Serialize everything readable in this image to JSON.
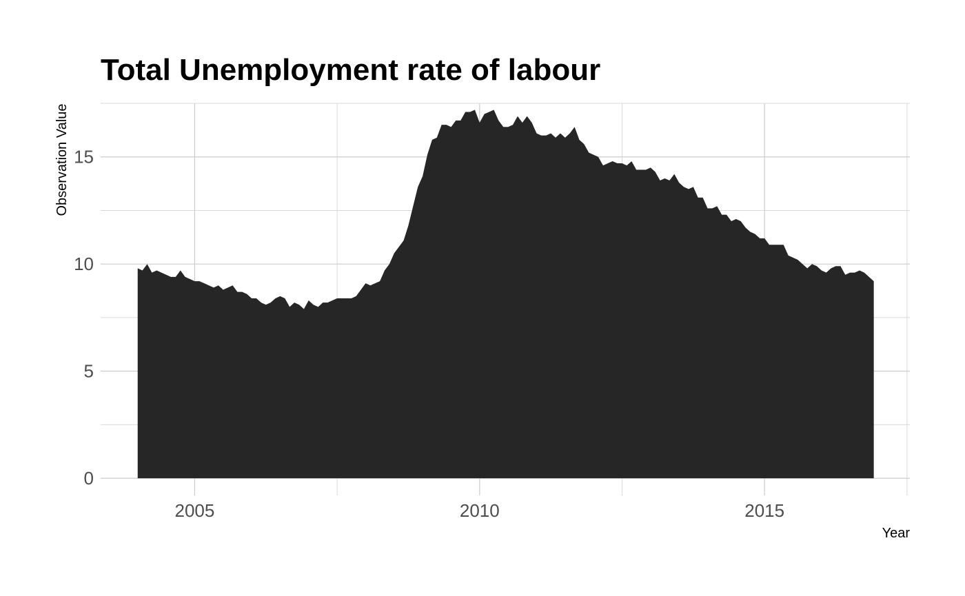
{
  "chart_data": {
    "type": "area",
    "title": "Total Unemployment rate of labour",
    "xlabel": "Year",
    "ylabel": "Observation Value",
    "xlim": [
      2003.35,
      2017.55
    ],
    "ylim": [
      -0.8,
      17.5
    ],
    "x_ticks": [
      2005,
      2010,
      2015
    ],
    "x_tick_labels": [
      "2005",
      "2010",
      "2015"
    ],
    "x_minor_ticks": [
      2007.5,
      2012.5,
      2017.5
    ],
    "y_ticks": [
      0,
      5,
      10,
      15
    ],
    "y_tick_labels": [
      "0",
      "5",
      "10",
      "15"
    ],
    "y_minor_ticks": [
      2.5,
      7.5,
      12.5,
      17.5
    ],
    "grid": true,
    "legend": "none",
    "fill_color": "#262626",
    "series": [
      {
        "x": [
          2004.0,
          2004.083,
          2004.167,
          2004.25,
          2004.333,
          2004.417,
          2004.5,
          2004.583,
          2004.667,
          2004.75,
          2004.833,
          2004.917,
          2005.0,
          2005.083,
          2005.167,
          2005.25,
          2005.333,
          2005.417,
          2005.5,
          2005.583,
          2005.667,
          2005.75,
          2005.833,
          2005.917,
          2006.0,
          2006.083,
          2006.167,
          2006.25,
          2006.333,
          2006.417,
          2006.5,
          2006.583,
          2006.667,
          2006.75,
          2006.833,
          2006.917,
          2007.0,
          2007.083,
          2007.167,
          2007.25,
          2007.333,
          2007.417,
          2007.5,
          2007.583,
          2007.667,
          2007.75,
          2007.833,
          2007.917,
          2008.0,
          2008.083,
          2008.167,
          2008.25,
          2008.333,
          2008.417,
          2008.5,
          2008.583,
          2008.667,
          2008.75,
          2008.833,
          2008.917,
          2009.0,
          2009.083,
          2009.167,
          2009.25,
          2009.333,
          2009.417,
          2009.5,
          2009.583,
          2009.667,
          2009.75,
          2009.833,
          2009.917,
          2010.0,
          2010.083,
          2010.167,
          2010.25,
          2010.333,
          2010.417,
          2010.5,
          2010.583,
          2010.667,
          2010.75,
          2010.833,
          2010.917,
          2011.0,
          2011.083,
          2011.167,
          2011.25,
          2011.333,
          2011.417,
          2011.5,
          2011.583,
          2011.667,
          2011.75,
          2011.833,
          2011.917,
          2012.0,
          2012.083,
          2012.167,
          2012.25,
          2012.333,
          2012.417,
          2012.5,
          2012.583,
          2012.667,
          2012.75,
          2012.833,
          2012.917,
          2013.0,
          2013.083,
          2013.167,
          2013.25,
          2013.333,
          2013.417,
          2013.5,
          2013.583,
          2013.667,
          2013.75,
          2013.833,
          2013.917,
          2014.0,
          2014.083,
          2014.167,
          2014.25,
          2014.333,
          2014.417,
          2014.5,
          2014.583,
          2014.667,
          2014.75,
          2014.833,
          2014.917,
          2015.0,
          2015.083,
          2015.167,
          2015.25,
          2015.333,
          2015.417,
          2015.5,
          2015.583,
          2015.667,
          2015.75,
          2015.833,
          2015.917,
          2016.0,
          2016.083,
          2016.167,
          2016.25,
          2016.333,
          2016.417,
          2016.5,
          2016.583,
          2016.667,
          2016.75,
          2016.833,
          2016.917
        ],
        "values": [
          9.8,
          9.7,
          10.0,
          9.6,
          9.7,
          9.6,
          9.5,
          9.4,
          9.4,
          9.7,
          9.4,
          9.3,
          9.2,
          9.2,
          9.1,
          9.0,
          8.9,
          9.0,
          8.8,
          8.9,
          9.0,
          8.7,
          8.7,
          8.6,
          8.4,
          8.4,
          8.2,
          8.1,
          8.2,
          8.4,
          8.5,
          8.4,
          8.0,
          8.2,
          8.1,
          7.9,
          8.3,
          8.1,
          8.0,
          8.2,
          8.2,
          8.3,
          8.4,
          8.4,
          8.4,
          8.4,
          8.5,
          8.8,
          9.1,
          9.0,
          9.1,
          9.2,
          9.7,
          10.0,
          10.5,
          10.8,
          11.1,
          11.8,
          12.7,
          13.6,
          14.1,
          15.1,
          15.8,
          15.9,
          16.5,
          16.5,
          16.4,
          16.7,
          16.7,
          17.1,
          17.1,
          17.2,
          16.6,
          17.0,
          17.1,
          17.2,
          16.7,
          16.4,
          16.4,
          16.5,
          16.9,
          16.6,
          16.9,
          16.6,
          16.1,
          16.0,
          16.0,
          16.1,
          15.9,
          16.1,
          15.9,
          16.1,
          16.4,
          15.8,
          15.6,
          15.2,
          15.1,
          15.0,
          14.6,
          14.7,
          14.8,
          14.7,
          14.7,
          14.6,
          14.8,
          14.4,
          14.4,
          14.4,
          14.5,
          14.3,
          13.9,
          14.0,
          13.9,
          14.2,
          13.8,
          13.6,
          13.5,
          13.6,
          13.1,
          13.1,
          12.6,
          12.6,
          12.7,
          12.3,
          12.3,
          12.0,
          12.1,
          12.0,
          11.7,
          11.5,
          11.4,
          11.2,
          11.2,
          10.9,
          10.9,
          10.9,
          10.9,
          10.4,
          10.3,
          10.2,
          10.0,
          9.8,
          10.0,
          9.9,
          9.7,
          9.6,
          9.8,
          9.9,
          9.9,
          9.5,
          9.6,
          9.6,
          9.7,
          9.6,
          9.4,
          9.2
        ]
      }
    ]
  }
}
